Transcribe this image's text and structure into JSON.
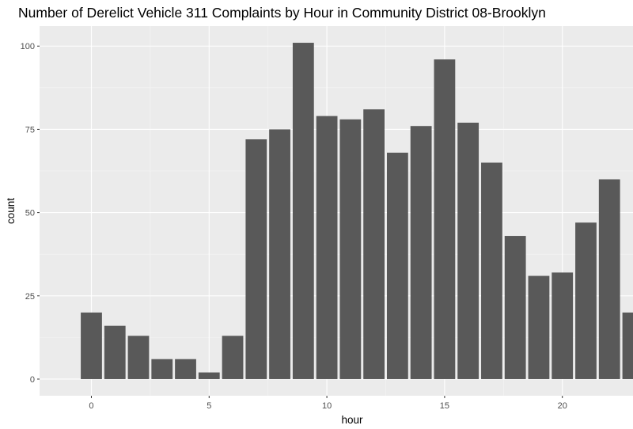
{
  "chart_data": {
    "type": "bar",
    "title": "Number of Derelict Vehicle 311 Complaints by Hour in Community District 08-Brooklyn",
    "xlabel": "hour",
    "ylabel": "count",
    "x_ticks": [
      0,
      5,
      10,
      15,
      20
    ],
    "y_ticks": [
      0,
      25,
      50,
      75,
      100
    ],
    "xlim": [
      -2.2,
      23
    ],
    "ylim": [
      -5,
      106
    ],
    "grid": true,
    "categories": [
      0,
      1,
      2,
      3,
      4,
      5,
      6,
      7,
      8,
      9,
      10,
      11,
      12,
      13,
      14,
      15,
      16,
      17,
      18,
      19,
      20,
      21,
      22,
      23
    ],
    "values": [
      20,
      16,
      13,
      6,
      6,
      2,
      13,
      72,
      75,
      101,
      79,
      78,
      81,
      68,
      76,
      96,
      77,
      65,
      43,
      31,
      32,
      47,
      60,
      20
    ],
    "colors": {
      "bar": "#595959",
      "panel_background": "#ebebeb",
      "grid_major": "#ffffff",
      "grid_minor": "#f5f5f5",
      "tick_label": "#4d4d4d"
    }
  }
}
